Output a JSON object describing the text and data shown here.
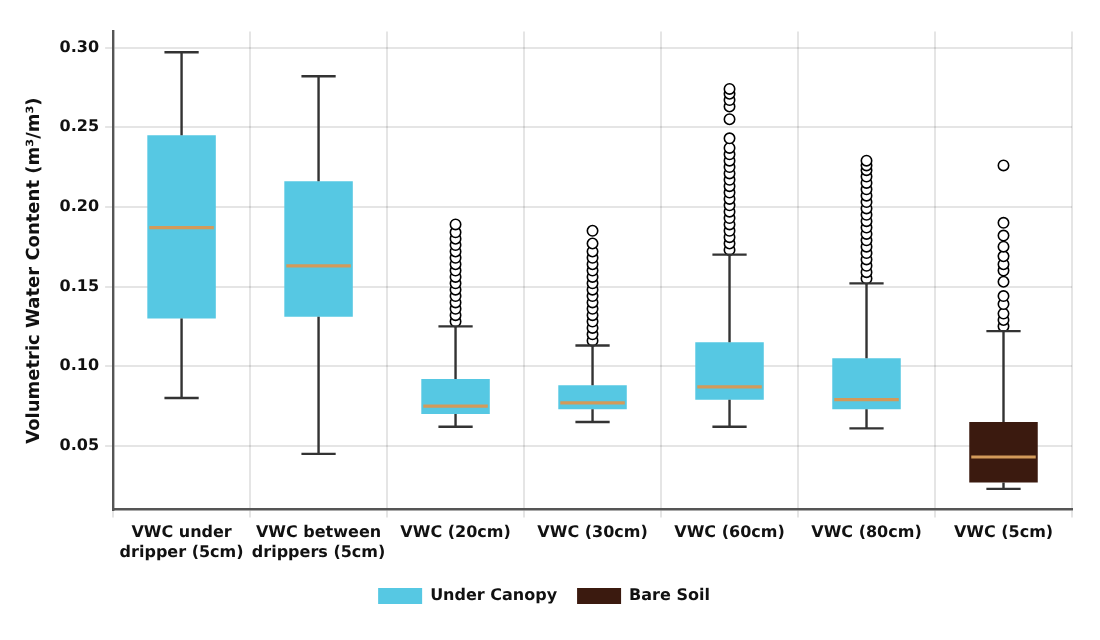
{
  "chart_data": {
    "type": "box",
    "ylabel": "Volumetric Water Content (m³/m³)",
    "categories": [
      "VWC under dripper (5cm)",
      "VWC between drippers (5cm)",
      "VWC (20cm)",
      "VWC (30cm)",
      "VWC (60cm)",
      "VWC (80cm)",
      "VWC (5cm)"
    ],
    "series": [
      {
        "name": "Under Canopy",
        "color": "#56c8e3",
        "boxes": [
          {
            "low": 0.08,
            "q1": 0.13,
            "median": 0.187,
            "q3": 0.245,
            "high": 0.297
          },
          {
            "low": 0.045,
            "q1": 0.131,
            "median": 0.163,
            "q3": 0.216,
            "high": 0.282
          },
          {
            "low": 0.062,
            "q1": 0.07,
            "median": 0.075,
            "q3": 0.092,
            "high": 0.125,
            "outliers": [
              0.128,
              0.132,
              0.136,
              0.14,
              0.144,
              0.148,
              0.152,
              0.156,
              0.16,
              0.164,
              0.168,
              0.172,
              0.176,
              0.18,
              0.184,
              0.189
            ]
          },
          {
            "low": 0.065,
            "q1": 0.073,
            "median": 0.077,
            "q3": 0.088,
            "high": 0.113,
            "outliers": [
              0.116,
              0.12,
              0.124,
              0.128,
              0.132,
              0.136,
              0.14,
              0.144,
              0.148,
              0.152,
              0.156,
              0.16,
              0.164,
              0.168,
              0.172,
              0.177,
              0.185
            ]
          },
          {
            "low": 0.062,
            "q1": 0.079,
            "median": 0.087,
            "q3": 0.115,
            "high": 0.17,
            "outliers": [
              0.173,
              0.177,
              0.181,
              0.185,
              0.189,
              0.193,
              0.197,
              0.201,
              0.205,
              0.209,
              0.213,
              0.217,
              0.221,
              0.225,
              0.229,
              0.233,
              0.237,
              0.243,
              0.255,
              0.263,
              0.267,
              0.271,
              0.274
            ]
          },
          {
            "low": 0.061,
            "q1": 0.073,
            "median": 0.079,
            "q3": 0.105,
            "high": 0.152,
            "outliers": [
              0.155,
              0.159,
              0.163,
              0.167,
              0.171,
              0.175,
              0.179,
              0.183,
              0.187,
              0.191,
              0.195,
              0.199,
              0.203,
              0.207,
              0.211,
              0.215,
              0.219,
              0.223,
              0.226,
              0.229
            ]
          },
          null
        ]
      },
      {
        "name": "Bare Soil",
        "color": "#3b1a0f",
        "boxes": [
          null,
          null,
          null,
          null,
          null,
          null,
          {
            "low": 0.023,
            "q1": 0.027,
            "median": 0.043,
            "q3": 0.065,
            "high": 0.122,
            "outliers": [
              0.125,
              0.129,
              0.133,
              0.139,
              0.144,
              0.153,
              0.16,
              0.164,
              0.169,
              0.175,
              0.182,
              0.19,
              0.226
            ]
          }
        ]
      }
    ],
    "ylim": [
      0.01,
      0.31
    ],
    "yticks": [
      0.05,
      {
        "value": 0.1,
        "label": "0.10"
      },
      0.15,
      {
        "value": 0.2,
        "label": "0.20"
      },
      0.25,
      {
        "value": 0.3,
        "label": "0.30"
      }
    ],
    "grid": true,
    "legend": "bottom"
  }
}
